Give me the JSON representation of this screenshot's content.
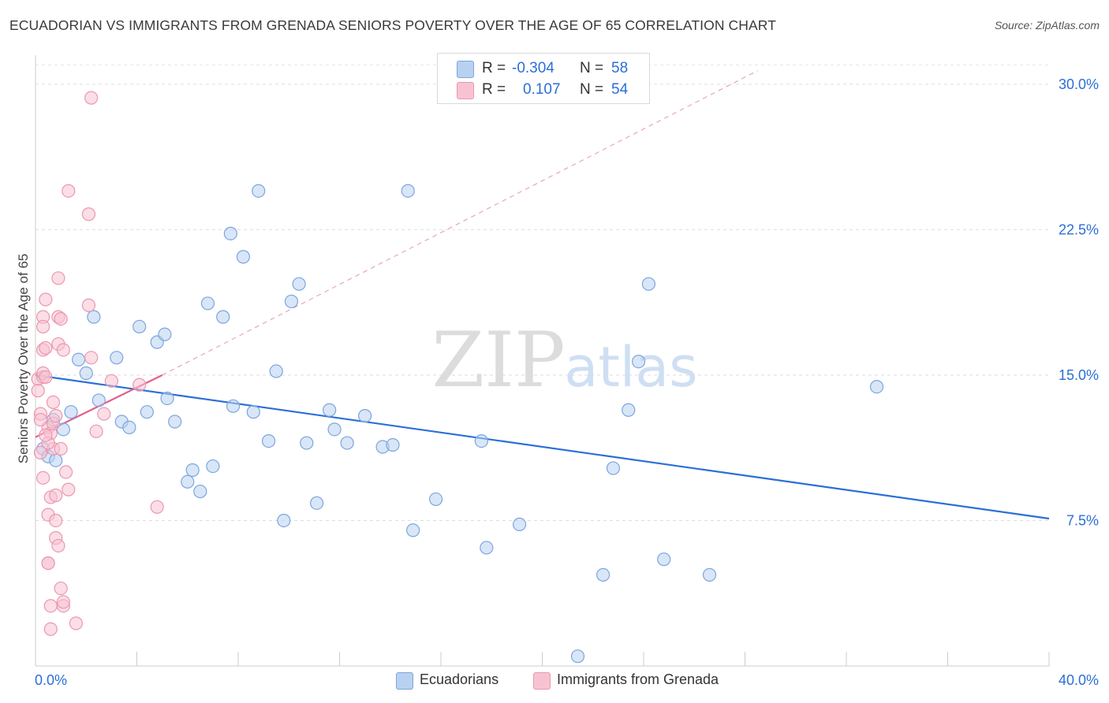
{
  "title": "ECUADORIAN VS IMMIGRANTS FROM GRENADA SENIORS POVERTY OVER THE AGE OF 65 CORRELATION CHART",
  "source": "Source: ZipAtlas.com",
  "watermark": {
    "zip": "ZIP",
    "atlas": "atlas"
  },
  "legend": {
    "r_label": "R =",
    "n_label": "N =",
    "rows": [
      {
        "r": "-0.304",
        "n": "58"
      },
      {
        "r": "0.107",
        "n": "54"
      }
    ]
  },
  "chart_data": {
    "type": "scatter",
    "ylabel": "Seniors Poverty Over the Age of 65",
    "xlim": [
      0,
      40
    ],
    "ylim": [
      0,
      31.5
    ],
    "x_tick_labels": [
      "0.0%",
      "40.0%"
    ],
    "y_ticks": [
      7.5,
      15.0,
      22.5,
      30.0
    ],
    "y_tick_labels": [
      "7.5%",
      "15.0%",
      "22.5%",
      "30.0%"
    ],
    "grid": true,
    "colors": {
      "blue_fill": "#b9d1f1",
      "blue_stroke": "#7aa6de",
      "blue_line": "#2b6fd6",
      "pink_fill": "#f7c3d2",
      "pink_stroke": "#eb97b1",
      "pink_line": "#e0608c",
      "diag": "#e8a7bb",
      "axis_label": "#2b6fd6"
    },
    "series": [
      {
        "name": "Ecuadorians",
        "points": [
          [
            0.3,
            11.2
          ],
          [
            0.5,
            10.8
          ],
          [
            0.7,
            12.7
          ],
          [
            0.8,
            10.6
          ],
          [
            1.1,
            12.2
          ],
          [
            1.4,
            13.1
          ],
          [
            1.7,
            15.8
          ],
          [
            2.0,
            15.1
          ],
          [
            2.3,
            18.0
          ],
          [
            2.5,
            13.7
          ],
          [
            3.2,
            15.9
          ],
          [
            3.4,
            12.6
          ],
          [
            3.7,
            12.3
          ],
          [
            4.1,
            17.5
          ],
          [
            4.4,
            13.1
          ],
          [
            4.8,
            16.7
          ],
          [
            5.1,
            17.1
          ],
          [
            5.2,
            13.8
          ],
          [
            5.5,
            12.6
          ],
          [
            6.0,
            9.5
          ],
          [
            6.2,
            10.1
          ],
          [
            6.5,
            9.0
          ],
          [
            6.8,
            18.7
          ],
          [
            7.0,
            10.3
          ],
          [
            7.4,
            18.0
          ],
          [
            7.7,
            22.3
          ],
          [
            7.8,
            13.4
          ],
          [
            8.2,
            21.1
          ],
          [
            8.6,
            13.1
          ],
          [
            8.8,
            24.5
          ],
          [
            9.2,
            11.6
          ],
          [
            9.5,
            15.2
          ],
          [
            9.8,
            7.5
          ],
          [
            10.1,
            18.8
          ],
          [
            10.4,
            19.7
          ],
          [
            10.7,
            11.5
          ],
          [
            11.1,
            8.4
          ],
          [
            11.6,
            13.2
          ],
          [
            11.8,
            12.2
          ],
          [
            12.3,
            11.5
          ],
          [
            13.0,
            12.9
          ],
          [
            13.7,
            11.3
          ],
          [
            14.1,
            11.4
          ],
          [
            14.7,
            24.5
          ],
          [
            14.9,
            7.0
          ],
          [
            15.8,
            8.6
          ],
          [
            17.6,
            11.6
          ],
          [
            17.8,
            6.1
          ],
          [
            19.1,
            7.3
          ],
          [
            22.4,
            4.7
          ],
          [
            22.8,
            10.2
          ],
          [
            23.4,
            13.2
          ],
          [
            23.8,
            15.7
          ],
          [
            24.2,
            19.7
          ],
          [
            24.8,
            5.5
          ],
          [
            26.6,
            4.7
          ],
          [
            33.2,
            14.4
          ],
          [
            21.4,
            0.5
          ]
        ]
      },
      {
        "name": "Immigrants from Grenada",
        "points": [
          [
            0.1,
            14.8
          ],
          [
            0.1,
            14.2
          ],
          [
            0.2,
            13.0
          ],
          [
            0.2,
            11.0
          ],
          [
            0.3,
            14.9
          ],
          [
            0.3,
            15.1
          ],
          [
            0.3,
            18.0
          ],
          [
            0.3,
            17.5
          ],
          [
            0.3,
            9.7
          ],
          [
            0.3,
            16.3
          ],
          [
            0.4,
            18.9
          ],
          [
            0.4,
            16.4
          ],
          [
            0.4,
            14.9
          ],
          [
            0.5,
            12.3
          ],
          [
            0.5,
            7.8
          ],
          [
            0.5,
            5.3
          ],
          [
            0.5,
            5.3
          ],
          [
            0.6,
            8.7
          ],
          [
            0.6,
            3.1
          ],
          [
            0.6,
            1.9
          ],
          [
            0.6,
            12.0
          ],
          [
            0.7,
            12.5
          ],
          [
            0.7,
            13.6
          ],
          [
            0.7,
            11.2
          ],
          [
            0.8,
            8.8
          ],
          [
            0.8,
            7.5
          ],
          [
            0.8,
            6.6
          ],
          [
            0.9,
            6.2
          ],
          [
            0.9,
            20.0
          ],
          [
            0.9,
            16.6
          ],
          [
            0.9,
            18.0
          ],
          [
            1.0,
            17.9
          ],
          [
            1.0,
            11.2
          ],
          [
            1.0,
            4.0
          ],
          [
            1.1,
            16.3
          ],
          [
            1.1,
            3.1
          ],
          [
            1.1,
            3.3
          ],
          [
            1.2,
            10.0
          ],
          [
            1.3,
            24.5
          ],
          [
            1.3,
            9.1
          ],
          [
            1.6,
            2.2
          ],
          [
            2.1,
            23.3
          ],
          [
            2.1,
            18.6
          ],
          [
            2.2,
            15.9
          ],
          [
            2.2,
            29.3
          ],
          [
            2.4,
            12.1
          ],
          [
            2.7,
            13.0
          ],
          [
            3.0,
            14.7
          ],
          [
            4.1,
            14.5
          ],
          [
            4.8,
            8.2
          ],
          [
            0.2,
            12.7
          ],
          [
            0.5,
            11.5
          ],
          [
            0.8,
            12.9
          ],
          [
            0.4,
            11.9
          ]
        ]
      }
    ],
    "trend_lines": [
      {
        "series": "Ecuadorians",
        "from": [
          0,
          15.0
        ],
        "to": [
          40,
          7.6
        ]
      },
      {
        "series": "Immigrants from Grenada",
        "from": [
          0,
          11.8
        ],
        "to": [
          5.0,
          15.0
        ]
      }
    ],
    "diagonal_reference": {
      "from": [
        5.0,
        15.0
      ],
      "to": [
        28.5,
        30.7
      ]
    }
  },
  "bottom_legend": [
    "Ecuadorians",
    "Immigrants from Grenada"
  ]
}
